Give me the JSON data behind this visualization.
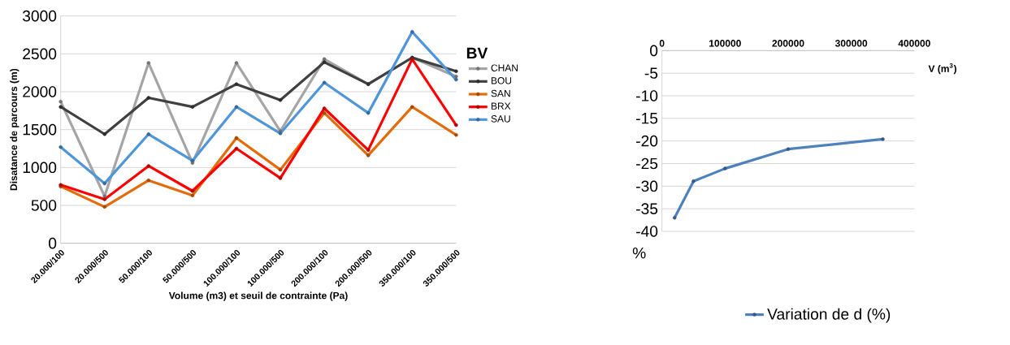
{
  "chart_data": [
    {
      "type": "line",
      "ylabel": "Disatance de parcours (m)",
      "xlabel": "Volume (m3) et seuil de contrainte (Pa)",
      "legend_title": "BV",
      "legend": "right",
      "grid": "y",
      "marker": "circle",
      "categories": [
        "20.000/100",
        "20.000/500",
        "50.000/100",
        "50.000/500",
        "100.000/100",
        "100.000/500",
        "200.000/100",
        "200.000/500",
        "350.000/100",
        "350.000/500"
      ],
      "ylim": [
        0,
        3000
      ],
      "yticks": [
        0,
        500,
        1000,
        1500,
        2000,
        2500,
        3000
      ],
      "series": [
        {
          "name": "CHAN",
          "color": "#a5a5a5",
          "values": [
            1870,
            620,
            2380,
            1060,
            2380,
            1480,
            2430,
            2100,
            2450,
            2200
          ]
        },
        {
          "name": "BOU",
          "color": "#404040",
          "values": [
            1800,
            1440,
            1920,
            1800,
            2100,
            1890,
            2390,
            2100,
            2450,
            2270
          ]
        },
        {
          "name": "SAN",
          "color": "#e36c09",
          "values": [
            750,
            480,
            830,
            630,
            1390,
            970,
            1720,
            1160,
            1800,
            1430
          ]
        },
        {
          "name": "BRX",
          "color": "#ff0000",
          "values": [
            770,
            580,
            1020,
            690,
            1250,
            860,
            1780,
            1230,
            2430,
            1560
          ]
        },
        {
          "name": "SAU",
          "color": "#4f95d9",
          "values": [
            1270,
            790,
            1440,
            1090,
            1800,
            1450,
            2120,
            1720,
            2790,
            2160
          ]
        }
      ]
    },
    {
      "type": "line",
      "xlabel": "V (m$^{3}$)",
      "ylabel": "%",
      "legend": "bottom",
      "grid": "y",
      "marker": "circle",
      "xlim": [
        0,
        400000
      ],
      "xticks": [
        0,
        100000,
        200000,
        300000,
        400000
      ],
      "ylim": [
        -40,
        0
      ],
      "yticks": [
        -40,
        -35,
        -30,
        -25,
        -20,
        -15,
        -10,
        -5,
        0
      ],
      "series": [
        {
          "name": "Variation de d (%)",
          "color": "#4f81bd",
          "x": [
            20000,
            50000,
            100000,
            200000,
            350000
          ],
          "values": [
            -37,
            -28.9,
            -26.1,
            -21.8,
            -19.6
          ]
        }
      ]
    }
  ]
}
